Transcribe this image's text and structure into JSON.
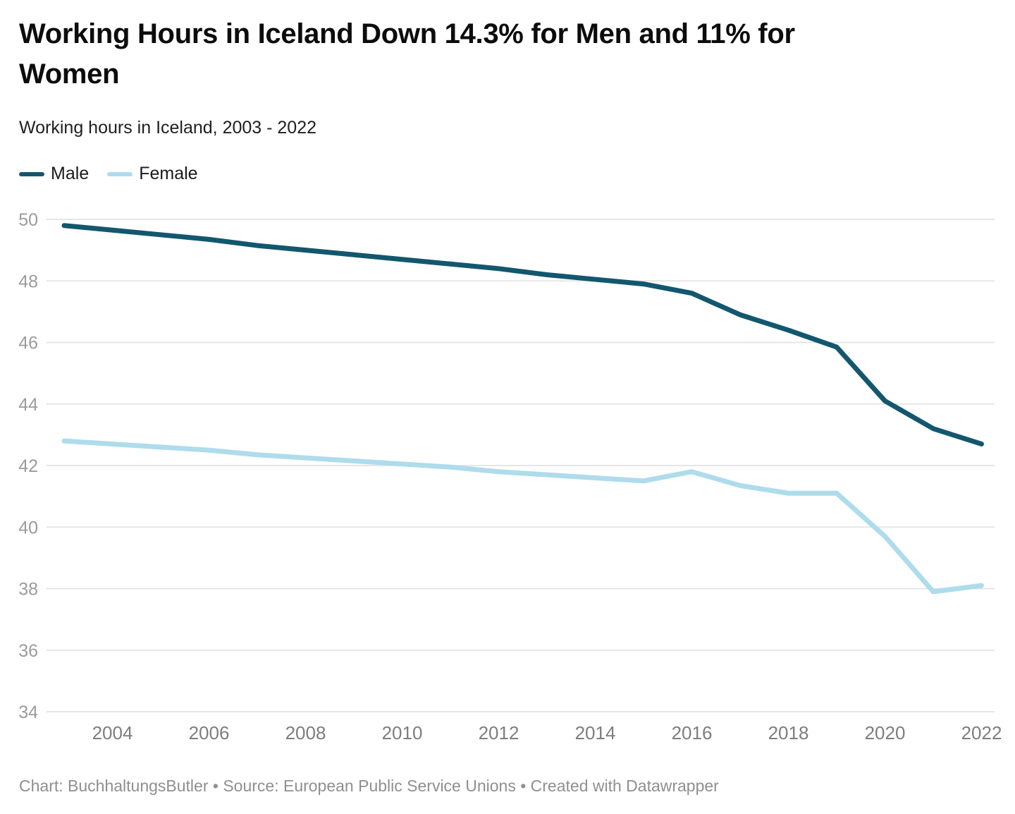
{
  "header": {
    "title": "Working Hours in Iceland Down 14.3% for Men and 11% for Women",
    "title_lines": [
      "Working Hours in Iceland Down 14.3% for Men and 11% for",
      "Women"
    ],
    "subtitle": "Working hours in Iceland, 2003 - 2022"
  },
  "legend": {
    "items": [
      {
        "label": "Male",
        "color": "#12576e"
      },
      {
        "label": "Female",
        "color": "#aedcec"
      }
    ]
  },
  "footer": {
    "text": "Chart: BuchhaltungsButler • Source: European Public Service Unions • Created with Datawrapper"
  },
  "chart_data": {
    "type": "line",
    "title": "Working Hours in Iceland Down 14.3% for Men and 11% for Women",
    "subtitle": "Working hours in Iceland, 2003 - 2022",
    "xlabel": "",
    "ylabel": "",
    "x": [
      2003,
      2004,
      2005,
      2006,
      2007,
      2008,
      2009,
      2010,
      2011,
      2012,
      2013,
      2014,
      2015,
      2016,
      2017,
      2018,
      2019,
      2020,
      2021,
      2022
    ],
    "xticks": [
      2004,
      2006,
      2008,
      2010,
      2012,
      2014,
      2016,
      2018,
      2020,
      2022
    ],
    "yticks": [
      34,
      36,
      38,
      40,
      42,
      44,
      46,
      48,
      50
    ],
    "ylim": [
      34,
      50.8
    ],
    "grid": "horizontal",
    "legend_position": "top-left",
    "series": [
      {
        "name": "Male",
        "color": "#12576e",
        "values": [
          49.8,
          49.65,
          49.5,
          49.35,
          49.15,
          49.0,
          48.85,
          48.7,
          48.55,
          48.4,
          48.2,
          48.05,
          47.9,
          47.6,
          46.9,
          46.4,
          45.85,
          44.1,
          43.2,
          42.7
        ]
      },
      {
        "name": "Female",
        "color": "#aedcec",
        "values": [
          42.8,
          42.7,
          42.6,
          42.5,
          42.35,
          42.25,
          42.15,
          42.05,
          41.95,
          41.8,
          41.7,
          41.6,
          41.5,
          41.8,
          41.35,
          41.1,
          41.1,
          39.7,
          37.9,
          38.1
        ]
      }
    ]
  }
}
